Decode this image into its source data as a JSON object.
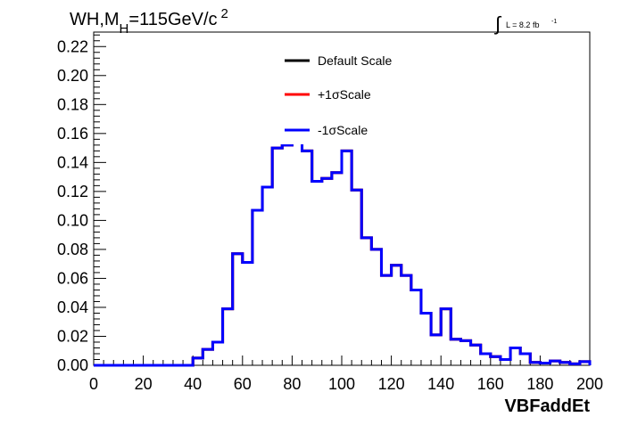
{
  "chart_data": {
    "type": "line",
    "title_main": "WH,M",
    "title_sub": "H",
    "title_rest": "=115GeV/c",
    "title_sup": "2",
    "lumi_label": "L = 8.2 fb",
    "lumi_sup": "-1",
    "xlabel": "VBFaddEt",
    "ylabel": "",
    "xlim": [
      0,
      200
    ],
    "ylim": [
      0,
      0.23
    ],
    "x_ticks": [
      "0",
      "20",
      "40",
      "60",
      "80",
      "100",
      "120",
      "140",
      "160",
      "180",
      "200"
    ],
    "y_ticks": [
      "0.00",
      "0.02",
      "0.04",
      "0.06",
      "0.08",
      "0.10",
      "0.12",
      "0.14",
      "0.16",
      "0.18",
      "0.20",
      "0.22"
    ],
    "grid": false,
    "legend_position": "top-center",
    "bin_edges_start": 0,
    "bin_width": 4,
    "series": [
      {
        "name": "Default Scale",
        "color": "#000000",
        "values": [
          0,
          0,
          0,
          0,
          0,
          0,
          0,
          0,
          0,
          0,
          0.005,
          0.011,
          0.016,
          0.039,
          0.077,
          0.071,
          0.107,
          0.123,
          0.15,
          0.152,
          0.165,
          0.148,
          0.127,
          0.129,
          0.133,
          0.148,
          0.121,
          0.088,
          0.08,
          0.062,
          0.069,
          0.062,
          0.052,
          0.036,
          0.021,
          0.039,
          0.018,
          0.017,
          0.014,
          0.008,
          0.006,
          0.004,
          0.012,
          0.008,
          0.002,
          0.0015,
          0.003,
          0.002,
          0.001,
          0.0025,
          0.002,
          0.0005,
          0
        ]
      },
      {
        "name": "+1σScale",
        "color": "#ff0000",
        "values": [
          0,
          0,
          0,
          0,
          0,
          0,
          0,
          0,
          0,
          0,
          0.005,
          0.011,
          0.016,
          0.039,
          0.077,
          0.071,
          0.107,
          0.123,
          0.15,
          0.152,
          0.165,
          0.148,
          0.127,
          0.129,
          0.133,
          0.148,
          0.121,
          0.088,
          0.08,
          0.062,
          0.069,
          0.062,
          0.052,
          0.036,
          0.021,
          0.039,
          0.018,
          0.017,
          0.014,
          0.008,
          0.006,
          0.004,
          0.012,
          0.008,
          0.002,
          0.0015,
          0.003,
          0.002,
          0.001,
          0.0025,
          0.002,
          0.0005,
          0
        ]
      },
      {
        "name": "-1σScale",
        "color": "#0000ff",
        "values": [
          0,
          0,
          0,
          0,
          0,
          0,
          0,
          0,
          0,
          0,
          0.005,
          0.011,
          0.016,
          0.039,
          0.077,
          0.071,
          0.107,
          0.123,
          0.15,
          0.152,
          0.165,
          0.148,
          0.127,
          0.129,
          0.133,
          0.148,
          0.121,
          0.088,
          0.08,
          0.062,
          0.069,
          0.062,
          0.052,
          0.036,
          0.021,
          0.039,
          0.018,
          0.017,
          0.014,
          0.008,
          0.006,
          0.004,
          0.012,
          0.008,
          0.002,
          0.0015,
          0.003,
          0.002,
          0.001,
          0.0025,
          0.002,
          0.0005,
          0
        ]
      }
    ]
  }
}
